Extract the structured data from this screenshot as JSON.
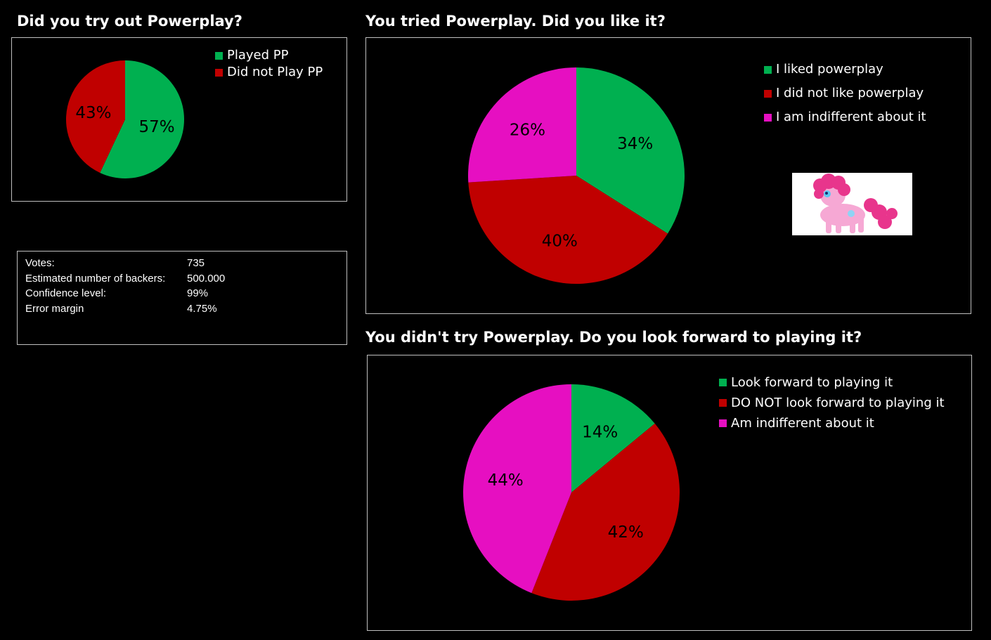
{
  "colors": {
    "green": "#00b050",
    "red": "#c00000",
    "magenta": "#e60fc1"
  },
  "pony_image": {
    "description": "pink-pony-image"
  },
  "stats": [
    {
      "label": "Votes:",
      "value": "735"
    },
    {
      "label": "Estimated  number of backers:",
      "value": "500.000"
    },
    {
      "label": "Confidence level:",
      "value": "99%"
    },
    {
      "label": "Error margin",
      "value": "4.75%"
    }
  ],
  "chart_data": [
    {
      "type": "pie",
      "title": "Did you try out Powerplay?",
      "legend_position": "top-right",
      "slices": [
        {
          "label": "Played PP",
          "value": 57,
          "display": "57%",
          "color": "green"
        },
        {
          "label": "Did not Play PP",
          "value": 43,
          "display": "43%",
          "color": "red"
        }
      ]
    },
    {
      "type": "pie",
      "title": "You tried Powerplay. Did you like it?",
      "legend_position": "top-right",
      "slices": [
        {
          "label": "I liked powerplay",
          "value": 34,
          "display": "34%",
          "color": "green"
        },
        {
          "label": "I did not like powerplay",
          "value": 40,
          "display": "40%",
          "color": "red"
        },
        {
          "label": "I am indifferent about it",
          "value": 26,
          "display": "26%",
          "color": "magenta"
        }
      ]
    },
    {
      "type": "pie",
      "title": "You didn't try Powerplay. Do you look forward to playing it?",
      "legend_position": "top-right",
      "slices": [
        {
          "label": "Look forward to playing it",
          "value": 14,
          "display": "14%",
          "color": "green"
        },
        {
          "label": "DO NOT look forward to playing it",
          "value": 42,
          "display": "42%",
          "color": "red"
        },
        {
          "label": "Am indifferent about it",
          "value": 44,
          "display": "44%",
          "color": "magenta"
        }
      ]
    }
  ]
}
